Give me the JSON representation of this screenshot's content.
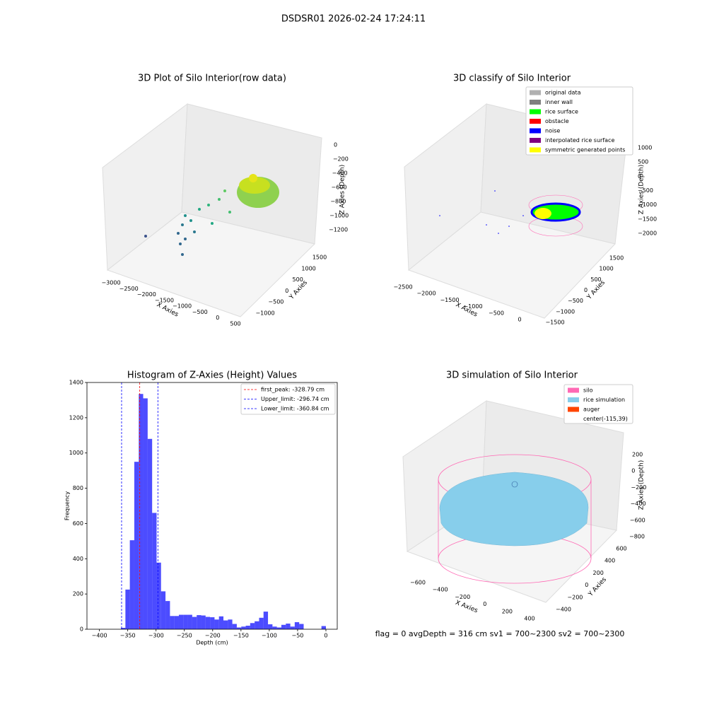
{
  "title": "DSDSR01 2026-02-24 17:24:11",
  "footer": "flag = 0     avgDepth = 316 cm  sv1 = 700~2300  sv2 = 700~2300",
  "chart_data": [
    {
      "type": "scatter3d",
      "title": "3D Plot of Silo Interior(row data)",
      "xlabel": "X Axies",
      "ylabel": "Y Axies",
      "zlabel": "Z Axies (Depth)",
      "xticks": [
        {
          "value": -3000,
          "label": "−3000"
        },
        {
          "value": -2500,
          "label": "−2500"
        },
        {
          "value": -2000,
          "label": "−2000"
        },
        {
          "value": -1500,
          "label": "−1500"
        },
        {
          "value": -1000,
          "label": "−1000"
        },
        {
          "value": -500,
          "label": "−500"
        },
        0,
        500
      ],
      "yticks": [
        {
          "value": -1000,
          "label": "−1000"
        },
        {
          "value": -500,
          "label": "−500"
        },
        0,
        500,
        1000,
        1500
      ],
      "zticks": [
        0,
        {
          "value": -200,
          "label": "−200"
        },
        {
          "value": -400,
          "label": "−400"
        },
        {
          "value": -600,
          "label": "−600"
        },
        {
          "value": -800,
          "label": "−800"
        },
        {
          "value": -1000,
          "label": "−1000"
        },
        {
          "value": -1200,
          "label": "−1200"
        }
      ]
    },
    {
      "type": "scatter3d",
      "title": "3D classify of Silo Interior",
      "xlabel": "X Axies",
      "ylabel": "Y Axies",
      "zlabel": "Z Axies (Depth)",
      "xticks": [
        {
          "value": -2500,
          "label": "−2500"
        },
        {
          "value": -2000,
          "label": "−2000"
        },
        {
          "value": -1500,
          "label": "−1500"
        },
        {
          "value": -1000,
          "label": "−1000"
        },
        {
          "value": -500,
          "label": "−500"
        },
        0
      ],
      "yticks": [
        {
          "value": -1500,
          "label": "−1500"
        },
        {
          "value": -1000,
          "label": "−1000"
        },
        {
          "value": -500,
          "label": "−500"
        },
        0,
        500,
        1000,
        1500
      ],
      "zticks": [
        1000,
        500,
        0,
        {
          "value": -500,
          "label": "−500"
        },
        {
          "value": -1000,
          "label": "−1000"
        },
        {
          "value": -1500,
          "label": "−1500"
        },
        {
          "value": -2000,
          "label": "−2000"
        }
      ],
      "legend": [
        {
          "name": "original data",
          "color": "#b0b0b0"
        },
        {
          "name": "inner wall",
          "color": "#808080"
        },
        {
          "name": "rice surface",
          "color": "#00ff00"
        },
        {
          "name": "obstacle",
          "color": "#ff0000"
        },
        {
          "name": "noise",
          "color": "#0000ff"
        },
        {
          "name": "interpolated rice surface",
          "color": "#800080"
        },
        {
          "name": "symmetric generated points",
          "color": "#ffff00"
        }
      ]
    },
    {
      "type": "histogram",
      "title": "Histogram of Z-Axies (Height) Values",
      "xlabel": "Depth (cm)",
      "ylabel": "Frequency",
      "color": "#0000ff",
      "bins": [
        -362,
        -354.1,
        -346.3,
        -338.4,
        -330.5,
        -322.7,
        -314.8,
        -306.9,
        -299.0,
        -291.2,
        -283.3,
        -275.4,
        -267.6,
        -259.7,
        -251.8,
        -244.0,
        -236.1,
        -228.2,
        -220.3,
        -212.5,
        -204.6,
        -196.7,
        -188.9,
        -181.0,
        -173.1,
        -165.3,
        -157.4,
        -149.5,
        -141.6,
        -133.8,
        -125.9,
        -118.0,
        -110.2,
        -102.3,
        -94.4,
        -86.6,
        -78.7,
        -70.8,
        -62.9,
        -55.1,
        -47.2,
        -39.3,
        -31.5,
        -23.6,
        -15.7,
        -7.9,
        0
      ],
      "values": [
        8,
        225,
        505,
        950,
        1335,
        1310,
        1080,
        660,
        378,
        215,
        160,
        75,
        75,
        82,
        82,
        82,
        70,
        80,
        78,
        70,
        68,
        55,
        73,
        50,
        55,
        30,
        10,
        15,
        20,
        35,
        45,
        65,
        100,
        28,
        15,
        10,
        25,
        32,
        15,
        40,
        30,
        0,
        0,
        0,
        0,
        18
      ],
      "vlines": [
        {
          "name": "first_peak: -328.79 cm",
          "value": -328.79,
          "color": "#ff0000"
        },
        {
          "name": "Upper_limit: -296.74 cm",
          "value": -296.74,
          "color": "#0000ff"
        },
        {
          "name": "Lower_limit: -360.84 cm",
          "value": -360.84,
          "color": "#0000ff"
        }
      ],
      "xlim": [
        -422,
        20
      ],
      "ylim": [
        0,
        1400
      ],
      "xticks": [
        {
          "value": -400,
          "label": "−400"
        },
        {
          "value": -350,
          "label": "−350"
        },
        {
          "value": -300,
          "label": "−300"
        },
        {
          "value": -250,
          "label": "−250"
        },
        {
          "value": -200,
          "label": "−200"
        },
        {
          "value": -150,
          "label": "−150"
        },
        {
          "value": -100,
          "label": "−100"
        },
        {
          "value": -50,
          "label": "−50"
        },
        0
      ],
      "yticks": [
        0,
        200,
        400,
        600,
        800,
        1000,
        1200,
        1400
      ]
    },
    {
      "type": "scatter3d",
      "title": "3D simulation of Silo Interior",
      "xlabel": "X Axies",
      "ylabel": "Y Axies",
      "zlabel": "Z Axies (Depth)",
      "xticks": [
        {
          "value": -600,
          "label": "−600"
        },
        {
          "value": -400,
          "label": "−400"
        },
        {
          "value": -200,
          "label": "−200"
        },
        0,
        200,
        400
      ],
      "yticks": [
        {
          "value": -400,
          "label": "−400"
        },
        {
          "value": -200,
          "label": "−200"
        },
        0,
        200,
        400,
        600
      ],
      "zticks": [
        200,
        0,
        {
          "value": -200,
          "label": "−200"
        },
        {
          "value": -400,
          "label": "−400"
        },
        {
          "value": -600,
          "label": "−600"
        },
        {
          "value": -800,
          "label": "−800"
        }
      ],
      "legend": [
        {
          "name": "silo",
          "color": "#ff69b4"
        },
        {
          "name": "rice simulation",
          "color": "#87ceeb"
        },
        {
          "name": "auger",
          "color": "#ff4500"
        },
        {
          "name": "center(-115,39)",
          "color": null
        }
      ]
    }
  ]
}
